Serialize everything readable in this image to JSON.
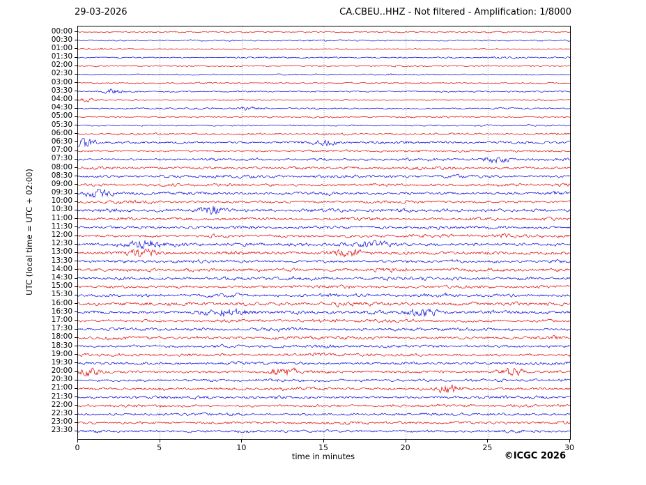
{
  "header": {
    "date": "29-03-2026",
    "title": "CA.CBEU..HHZ - Not filtered - Amplification: 1/8000"
  },
  "footer": {
    "copyright": "©ICGC 2026"
  },
  "chart_data": {
    "type": "line",
    "subtype": "helicorder-seismogram",
    "station": "CA.CBEU..HHZ",
    "filter": "Not filtered",
    "amplification": "1/8000",
    "date": "29-03-2026",
    "xlabel": "time in minutes",
    "ylabel": "UTC (local time = UTC + 02:00)",
    "xlim": [
      0,
      30
    ],
    "x_ticks": [
      0,
      5,
      10,
      15,
      20,
      25,
      30
    ],
    "row_minutes": 30,
    "grid": "vertical dotted lines at interior x ticks",
    "colors": {
      "even_trace": "#e00000",
      "odd_trace": "#0000dd",
      "grid": "#999999",
      "frame": "#000000",
      "background": "#ffffff"
    },
    "traces": [
      {
        "t": "00:00",
        "amp": 0.9,
        "bursts": []
      },
      {
        "t": "00:30",
        "amp": 0.9,
        "bursts": []
      },
      {
        "t": "01:00",
        "amp": 0.9,
        "bursts": []
      },
      {
        "t": "01:30",
        "amp": 0.9,
        "bursts": []
      },
      {
        "t": "02:00",
        "amp": 1.0,
        "bursts": []
      },
      {
        "t": "02:30",
        "amp": 0.9,
        "bursts": []
      },
      {
        "t": "03:00",
        "amp": 0.9,
        "bursts": []
      },
      {
        "t": "03:30",
        "amp": 1.0,
        "bursts": [
          [
            0.07,
            10,
            2.5
          ]
        ]
      },
      {
        "t": "04:00",
        "amp": 0.9,
        "bursts": [
          [
            0.02,
            8,
            2.2
          ]
        ]
      },
      {
        "t": "04:30",
        "amp": 1.0,
        "bursts": [
          [
            0.35,
            12,
            2.2
          ]
        ]
      },
      {
        "t": "05:00",
        "amp": 0.9,
        "bursts": []
      },
      {
        "t": "05:30",
        "amp": 1.0,
        "bursts": []
      },
      {
        "t": "06:00",
        "amp": 1.3,
        "bursts": []
      },
      {
        "t": "06:30",
        "amp": 1.6,
        "bursts": [
          [
            0.012,
            9,
            5
          ],
          [
            0.5,
            14,
            1.5
          ]
        ]
      },
      {
        "t": "07:00",
        "amp": 1.5,
        "bursts": []
      },
      {
        "t": "07:30",
        "amp": 1.7,
        "bursts": [
          [
            0.85,
            12,
            2
          ]
        ]
      },
      {
        "t": "08:00",
        "amp": 1.8,
        "bursts": []
      },
      {
        "t": "08:30",
        "amp": 1.8,
        "bursts": []
      },
      {
        "t": "09:00",
        "amp": 1.8,
        "bursts": []
      },
      {
        "t": "09:30",
        "amp": 2.0,
        "bursts": [
          [
            0.04,
            10,
            3
          ]
        ]
      },
      {
        "t": "10:00",
        "amp": 1.8,
        "bursts": []
      },
      {
        "t": "10:30",
        "amp": 2.0,
        "bursts": [
          [
            0.27,
            12,
            2.5
          ]
        ]
      },
      {
        "t": "11:00",
        "amp": 2.0,
        "bursts": []
      },
      {
        "t": "11:30",
        "amp": 2.0,
        "bursts": []
      },
      {
        "t": "12:00",
        "amp": 2.0,
        "bursts": []
      },
      {
        "t": "12:30",
        "amp": 2.2,
        "bursts": [
          [
            0.13,
            14,
            2.2
          ],
          [
            0.6,
            16,
            1.5
          ]
        ]
      },
      {
        "t": "13:00",
        "amp": 2.2,
        "bursts": [
          [
            0.13,
            12,
            2.2
          ],
          [
            0.55,
            14,
            1.8
          ]
        ]
      },
      {
        "t": "13:30",
        "amp": 2.0,
        "bursts": []
      },
      {
        "t": "14:00",
        "amp": 2.0,
        "bursts": []
      },
      {
        "t": "14:30",
        "amp": 2.0,
        "bursts": []
      },
      {
        "t": "15:00",
        "amp": 2.0,
        "bursts": []
      },
      {
        "t": "15:30",
        "amp": 2.2,
        "bursts": []
      },
      {
        "t": "16:00",
        "amp": 2.2,
        "bursts": []
      },
      {
        "t": "16:30",
        "amp": 2.4,
        "bursts": [
          [
            0.3,
            20,
            1.5
          ],
          [
            0.7,
            18,
            1.5
          ]
        ]
      },
      {
        "t": "17:00",
        "amp": 2.0,
        "bursts": []
      },
      {
        "t": "17:30",
        "amp": 2.0,
        "bursts": []
      },
      {
        "t": "18:00",
        "amp": 2.0,
        "bursts": []
      },
      {
        "t": "18:30",
        "amp": 1.9,
        "bursts": []
      },
      {
        "t": "19:00",
        "amp": 2.0,
        "bursts": []
      },
      {
        "t": "19:30",
        "amp": 1.9,
        "bursts": []
      },
      {
        "t": "20:00",
        "amp": 2.0,
        "bursts": [
          [
            0.02,
            10,
            2.5
          ],
          [
            0.42,
            12,
            2.2
          ],
          [
            0.88,
            12,
            2
          ]
        ]
      },
      {
        "t": "20:30",
        "amp": 1.8,
        "bursts": []
      },
      {
        "t": "21:00",
        "amp": 1.9,
        "bursts": [
          [
            0.75,
            12,
            2
          ]
        ]
      },
      {
        "t": "21:30",
        "amp": 1.8,
        "bursts": []
      },
      {
        "t": "22:00",
        "amp": 1.8,
        "bursts": []
      },
      {
        "t": "22:30",
        "amp": 1.8,
        "bursts": []
      },
      {
        "t": "23:00",
        "amp": 1.8,
        "bursts": []
      },
      {
        "t": "23:30",
        "amp": 1.8,
        "bursts": []
      }
    ]
  }
}
